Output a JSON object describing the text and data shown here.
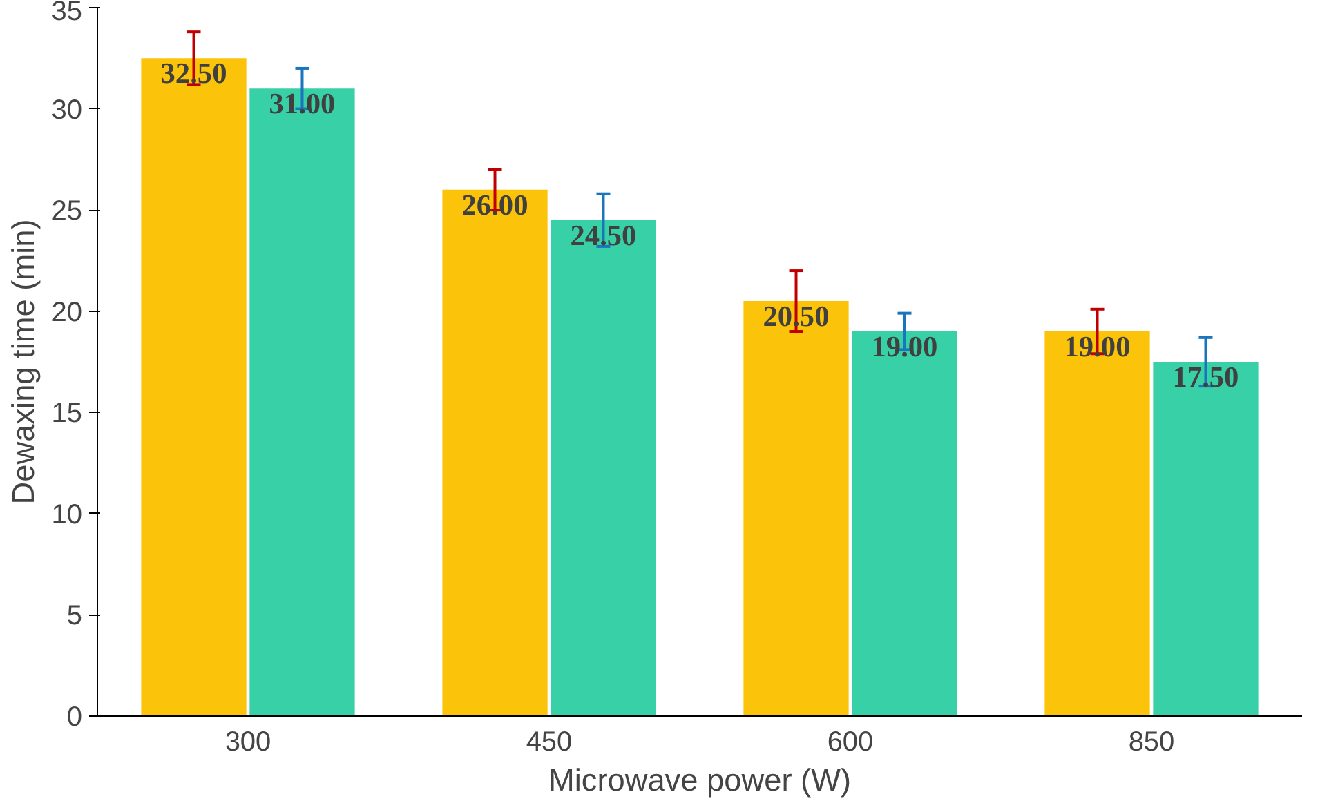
{
  "chart_data": {
    "type": "bar",
    "xlabel": "Microwave power (W)",
    "ylabel": "Dewaxing time (min)",
    "categories": [
      "300",
      "450",
      "600",
      "850"
    ],
    "series": [
      {
        "color": "#fcc30b",
        "values": [
          32.5,
          26.0,
          20.5,
          19.0
        ],
        "errors": [
          1.3,
          1.0,
          1.5,
          1.1
        ],
        "value_labels": [
          "32.50",
          "26.00",
          "20.50",
          "19.00"
        ]
      },
      {
        "color": "#38d0a6",
        "values": [
          31.0,
          24.5,
          19.0,
          17.5
        ],
        "errors": [
          1.0,
          1.3,
          0.9,
          1.2
        ],
        "value_labels": [
          "31.00",
          "24.50",
          "19.00",
          "17.50"
        ]
      }
    ],
    "ylim": [
      0,
      35
    ],
    "yticks": [
      0,
      5,
      10,
      15,
      20,
      25,
      30,
      35
    ],
    "grid": false
  }
}
